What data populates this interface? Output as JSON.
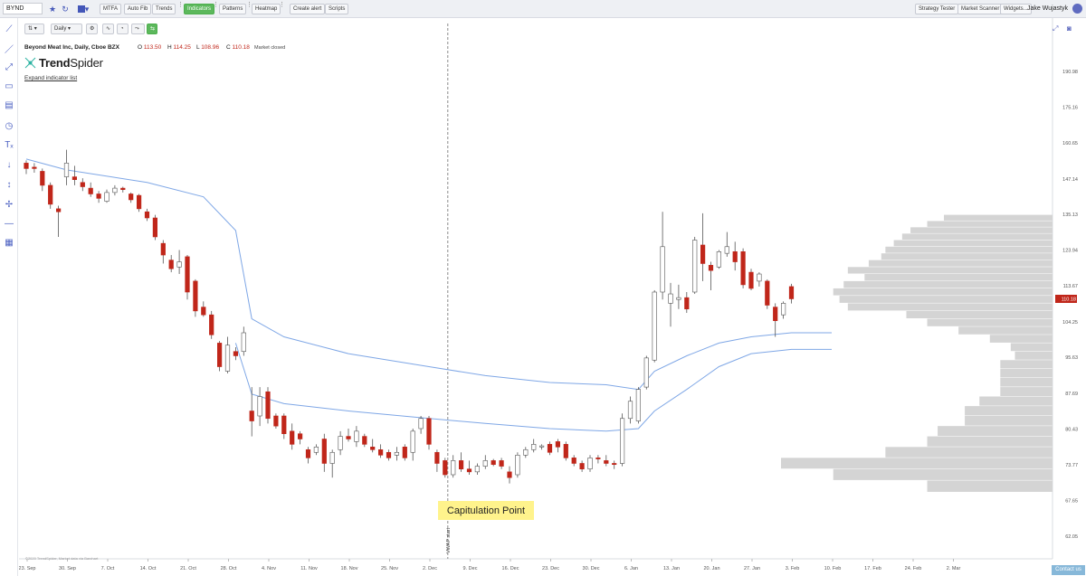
{
  "toolbar": {
    "ticker": "BYND",
    "mtfa": "MTFA",
    "autofib": "Auto Fib",
    "trends": "Trends",
    "indicators": "Indicators",
    "patterns": "Patterns",
    "heatmap": "Heatmap",
    "create_alert": "Create alert",
    "scripts": "Scripts",
    "strategy_tester": "Strategy Tester",
    "market_scanner": "Market Scanner",
    "widgets": "Widgets...",
    "user": "Jake Wujastyk"
  },
  "chart_controls": {
    "timeframe": "Daily"
  },
  "legend": {
    "title": "Beyond Meat Inc, Daily, Cboe BZX",
    "open_label": "O",
    "open": "113.50",
    "high_label": "H",
    "high": "114.25",
    "low_label": "L",
    "low": "108.96",
    "close_label": "C",
    "close": "110.18",
    "market_status": "Market closed"
  },
  "brand": {
    "name_bold": "Trend",
    "name_light": "Spider"
  },
  "expand_link": "Expand indicator list",
  "callout": "Capitulation Point",
  "vwap_label": "VWAP start",
  "contact": "Contact us",
  "watermark": "©2020 TrendSpider, Market data via Barchart",
  "colors": {
    "down": "#c0261a",
    "up": "#ffffff",
    "accent": "#5cb85c",
    "vwap": "#7fa7e6",
    "profile": "#d4d4d4"
  },
  "icons": [
    "star-icon",
    "refresh-icon",
    "color-swatch-icon",
    "line-tool-icon",
    "ray-tool-icon",
    "fib-tool-icon",
    "rectangle-icon",
    "channel-icon",
    "clock-icon",
    "text-icon",
    "arrow-down-icon",
    "arrow-up-icon",
    "crosshair-icon",
    "horizontal-line-icon",
    "grid-icon",
    "fullscreen-icon",
    "camera-icon",
    "user-icon"
  ],
  "chart_data": {
    "type": "candlestick",
    "title": "Beyond Meat Inc, Daily, Cboe BZX",
    "y_ticks": [
      190.98,
      175.16,
      160.65,
      147.14,
      135.13,
      123.94,
      113.67,
      104.25,
      95.63,
      87.69,
      80.43,
      73.77,
      67.65,
      62.05
    ],
    "x_ticks": [
      "23. Sep",
      "30. Sep",
      "7. Oct",
      "14. Oct",
      "21. Oct",
      "28. Oct",
      "4. Nov",
      "11. Nov",
      "18. Nov",
      "25. Nov",
      "2. Dec",
      "9. Dec",
      "16. Dec",
      "23. Dec",
      "30. Dec",
      "6. Jan",
      "13. Jan",
      "20. Jan",
      "27. Jan",
      "3. Feb",
      "10. Feb",
      "17. Feb",
      "24. Feb",
      "2. Mar"
    ],
    "last_price_label": "110.18",
    "candles": [
      {
        "d": "2019-09-23",
        "o": 153.0,
        "h": 154.0,
        "l": 149.0,
        "c": 151.0
      },
      {
        "d": "2019-09-24",
        "o": 151.5,
        "h": 153.0,
        "l": 149.5,
        "c": 151.0
      },
      {
        "d": "2019-09-25",
        "o": 150.0,
        "h": 151.0,
        "l": 143.0,
        "c": 145.0
      },
      {
        "d": "2019-09-26",
        "o": 145.0,
        "h": 146.0,
        "l": 137.0,
        "c": 138.5
      },
      {
        "d": "2019-09-27",
        "o": 137.0,
        "h": 138.0,
        "l": 128.0,
        "c": 136.0
      },
      {
        "d": "2019-09-30",
        "o": 148.0,
        "h": 158.0,
        "l": 145.0,
        "c": 153.0
      },
      {
        "d": "2019-10-01",
        "o": 148.0,
        "h": 152.0,
        "l": 145.0,
        "c": 147.0
      },
      {
        "d": "2019-10-02",
        "o": 146.0,
        "h": 147.5,
        "l": 143.0,
        "c": 144.5
      },
      {
        "d": "2019-10-03",
        "o": 144.0,
        "h": 146.0,
        "l": 141.0,
        "c": 142.0
      },
      {
        "d": "2019-10-04",
        "o": 142.0,
        "h": 143.0,
        "l": 139.0,
        "c": 140.5
      },
      {
        "d": "2019-10-07",
        "o": 139.5,
        "h": 143.5,
        "l": 139.0,
        "c": 142.5
      },
      {
        "d": "2019-10-08",
        "o": 142.5,
        "h": 145.0,
        "l": 141.5,
        "c": 144.0
      },
      {
        "d": "2019-10-09",
        "o": 144.0,
        "h": 144.5,
        "l": 142.5,
        "c": 143.5
      },
      {
        "d": "2019-10-10",
        "o": 142.0,
        "h": 142.5,
        "l": 139.0,
        "c": 140.0
      },
      {
        "d": "2019-10-11",
        "o": 141.5,
        "h": 142.0,
        "l": 136.0,
        "c": 137.0
      },
      {
        "d": "2019-10-14",
        "o": 136.0,
        "h": 137.0,
        "l": 133.0,
        "c": 134.0
      },
      {
        "d": "2019-10-15",
        "o": 134.0,
        "h": 135.0,
        "l": 127.0,
        "c": 128.0
      },
      {
        "d": "2019-10-16",
        "o": 126.0,
        "h": 127.0,
        "l": 120.0,
        "c": 122.5
      },
      {
        "d": "2019-10-17",
        "o": 121.0,
        "h": 122.5,
        "l": 117.5,
        "c": 118.5
      },
      {
        "d": "2019-10-18",
        "o": 119.0,
        "h": 124.0,
        "l": 117.0,
        "c": 120.5
      },
      {
        "d": "2019-10-21",
        "o": 122.0,
        "h": 122.5,
        "l": 110.0,
        "c": 112.0
      },
      {
        "d": "2019-10-22",
        "o": 115.0,
        "h": 115.5,
        "l": 105.5,
        "c": 107.0
      },
      {
        "d": "2019-10-23",
        "o": 108.0,
        "h": 109.5,
        "l": 105.5,
        "c": 106.0
      },
      {
        "d": "2019-10-24",
        "o": 106.0,
        "h": 107.0,
        "l": 100.0,
        "c": 101.0
      },
      {
        "d": "2019-10-25",
        "o": 99.0,
        "h": 99.5,
        "l": 92.5,
        "c": 93.5
      },
      {
        "d": "2019-10-28",
        "o": 92.5,
        "h": 100.5,
        "l": 92.0,
        "c": 98.5
      },
      {
        "d": "2019-10-29",
        "o": 97.0,
        "h": 98.0,
        "l": 95.0,
        "c": 96.0
      },
      {
        "d": "2019-10-30",
        "o": 97.0,
        "h": 103.0,
        "l": 96.0,
        "c": 101.5
      },
      {
        "d": "2019-10-31",
        "o": 84.0,
        "h": 89.0,
        "l": 79.0,
        "c": 82.0
      },
      {
        "d": "2019-11-01",
        "o": 83.0,
        "h": 89.0,
        "l": 81.0,
        "c": 87.0
      },
      {
        "d": "2019-11-04",
        "o": 88.0,
        "h": 89.0,
        "l": 81.5,
        "c": 82.5
      },
      {
        "d": "2019-11-05",
        "o": 83.0,
        "h": 83.5,
        "l": 80.5,
        "c": 81.0
      },
      {
        "d": "2019-11-06",
        "o": 83.0,
        "h": 83.5,
        "l": 78.5,
        "c": 79.5
      },
      {
        "d": "2019-11-07",
        "o": 80.0,
        "h": 81.5,
        "l": 76.5,
        "c": 77.5
      },
      {
        "d": "2019-11-08",
        "o": 79.5,
        "h": 80.0,
        "l": 77.5,
        "c": 78.5
      },
      {
        "d": "2019-11-11",
        "o": 76.5,
        "h": 77.0,
        "l": 74.0,
        "c": 75.0
      },
      {
        "d": "2019-11-12",
        "o": 76.0,
        "h": 77.5,
        "l": 75.5,
        "c": 77.0
      },
      {
        "d": "2019-11-13",
        "o": 78.5,
        "h": 79.5,
        "l": 72.5,
        "c": 74.0
      },
      {
        "d": "2019-11-14",
        "o": 74.0,
        "h": 76.5,
        "l": 71.5,
        "c": 76.0
      },
      {
        "d": "2019-11-15",
        "o": 76.5,
        "h": 80.0,
        "l": 75.5,
        "c": 79.0
      },
      {
        "d": "2019-11-18",
        "o": 79.0,
        "h": 80.5,
        "l": 78.0,
        "c": 78.5
      },
      {
        "d": "2019-11-19",
        "o": 78.0,
        "h": 81.0,
        "l": 77.0,
        "c": 80.0
      },
      {
        "d": "2019-11-20",
        "o": 79.0,
        "h": 79.5,
        "l": 77.0,
        "c": 77.5
      },
      {
        "d": "2019-11-21",
        "o": 77.0,
        "h": 78.5,
        "l": 76.0,
        "c": 76.5
      },
      {
        "d": "2019-11-22",
        "o": 76.5,
        "h": 77.5,
        "l": 75.0,
        "c": 75.5
      },
      {
        "d": "2019-11-25",
        "o": 76.0,
        "h": 76.5,
        "l": 74.5,
        "c": 75.0
      },
      {
        "d": "2019-11-26",
        "o": 75.5,
        "h": 77.0,
        "l": 74.5,
        "c": 76.0
      },
      {
        "d": "2019-11-27",
        "o": 77.0,
        "h": 77.5,
        "l": 74.5,
        "c": 75.0
      },
      {
        "d": "2019-11-29",
        "o": 76.0,
        "h": 80.5,
        "l": 74.5,
        "c": 80.0
      },
      {
        "d": "2019-12-02",
        "o": 80.5,
        "h": 83.0,
        "l": 79.5,
        "c": 82.5
      },
      {
        "d": "2019-12-03",
        "o": 82.5,
        "h": 83.0,
        "l": 76.5,
        "c": 77.5
      },
      {
        "d": "2019-12-04",
        "o": 76.0,
        "h": 76.5,
        "l": 72.5,
        "c": 74.0
      },
      {
        "d": "2019-12-05",
        "o": 74.5,
        "h": 75.0,
        "l": 71.5,
        "c": 72.0
      },
      {
        "d": "2019-12-09",
        "o": 72.0,
        "h": 75.5,
        "l": 71.5,
        "c": 74.5
      },
      {
        "d": "2019-12-10",
        "o": 74.5,
        "h": 76.0,
        "l": 72.5,
        "c": 73.0
      },
      {
        "d": "2019-12-11",
        "o": 73.0,
        "h": 74.5,
        "l": 72.0,
        "c": 72.5
      },
      {
        "d": "2019-12-12",
        "o": 72.5,
        "h": 74.0,
        "l": 72.0,
        "c": 73.5
      },
      {
        "d": "2019-12-13",
        "o": 73.5,
        "h": 75.5,
        "l": 73.0,
        "c": 74.5
      },
      {
        "d": "2019-12-16",
        "o": 74.5,
        "h": 74.8,
        "l": 73.5,
        "c": 73.8
      },
      {
        "d": "2019-12-17",
        "o": 74.5,
        "h": 75.0,
        "l": 73.0,
        "c": 73.5
      },
      {
        "d": "2019-12-18",
        "o": 72.5,
        "h": 73.5,
        "l": 70.5,
        "c": 71.5
      },
      {
        "d": "2019-12-19",
        "o": 72.0,
        "h": 76.0,
        "l": 71.5,
        "c": 75.5
      },
      {
        "d": "2019-12-20",
        "o": 75.5,
        "h": 77.0,
        "l": 75.0,
        "c": 76.5
      },
      {
        "d": "2019-12-23",
        "o": 76.5,
        "h": 78.5,
        "l": 76.0,
        "c": 77.5
      },
      {
        "d": "2019-12-24",
        "o": 77.0,
        "h": 77.5,
        "l": 76.5,
        "c": 77.2
      },
      {
        "d": "2019-12-26",
        "o": 77.5,
        "h": 78.0,
        "l": 75.5,
        "c": 76.0
      },
      {
        "d": "2019-12-27",
        "o": 78.0,
        "h": 78.5,
        "l": 76.0,
        "c": 77.0
      },
      {
        "d": "2019-12-30",
        "o": 77.5,
        "h": 78.0,
        "l": 74.5,
        "c": 75.0
      },
      {
        "d": "2019-12-31",
        "o": 75.0,
        "h": 75.5,
        "l": 73.5,
        "c": 74.0
      },
      {
        "d": "2020-01-02",
        "o": 74.0,
        "h": 74.5,
        "l": 72.5,
        "c": 73.0
      },
      {
        "d": "2020-01-03",
        "o": 73.0,
        "h": 75.5,
        "l": 72.5,
        "c": 75.0
      },
      {
        "d": "2020-01-06",
        "o": 75.0,
        "h": 75.5,
        "l": 74.0,
        "c": 74.8
      },
      {
        "d": "2020-01-07",
        "o": 74.5,
        "h": 75.5,
        "l": 73.5,
        "c": 74.0
      },
      {
        "d": "2020-01-08",
        "o": 74.0,
        "h": 74.5,
        "l": 73.0,
        "c": 73.8
      },
      {
        "d": "2020-01-09",
        "o": 74.0,
        "h": 83.5,
        "l": 73.5,
        "c": 82.5
      },
      {
        "d": "2020-01-10",
        "o": 82.5,
        "h": 87.0,
        "l": 81.5,
        "c": 86.0
      },
      {
        "d": "2020-01-13",
        "o": 82.0,
        "h": 89.0,
        "l": 81.5,
        "c": 88.5
      },
      {
        "d": "2020-01-14",
        "o": 89.0,
        "h": 96.0,
        "l": 88.5,
        "c": 95.5
      },
      {
        "d": "2020-01-15",
        "o": 95.0,
        "h": 112.5,
        "l": 94.5,
        "c": 112.0
      },
      {
        "d": "2020-01-16",
        "o": 112.0,
        "h": 136.0,
        "l": 110.0,
        "c": 125.0
      },
      {
        "d": "2020-01-17",
        "o": 109.0,
        "h": 114.5,
        "l": 103.0,
        "c": 111.5
      },
      {
        "d": "2020-01-21",
        "o": 110.0,
        "h": 114.0,
        "l": 107.5,
        "c": 110.5
      },
      {
        "d": "2020-01-22",
        "o": 110.5,
        "h": 112.0,
        "l": 106.5,
        "c": 107.5
      },
      {
        "d": "2020-01-23",
        "o": 112.0,
        "h": 128.0,
        "l": 111.5,
        "c": 127.0
      },
      {
        "d": "2020-01-24",
        "o": 125.5,
        "h": 135.5,
        "l": 115.0,
        "c": 120.0
      },
      {
        "d": "2020-01-27",
        "o": 119.5,
        "h": 120.5,
        "l": 112.5,
        "c": 118.0
      },
      {
        "d": "2020-01-28",
        "o": 119.0,
        "h": 124.0,
        "l": 118.5,
        "c": 123.5
      },
      {
        "d": "2020-01-29",
        "o": 123.0,
        "h": 129.5,
        "l": 122.0,
        "c": 125.0
      },
      {
        "d": "2020-01-30",
        "o": 123.5,
        "h": 126.5,
        "l": 118.0,
        "c": 120.5
      },
      {
        "d": "2020-01-31",
        "o": 123.5,
        "h": 124.5,
        "l": 113.0,
        "c": 114.0
      },
      {
        "d": "2020-02-03",
        "o": 117.5,
        "h": 118.5,
        "l": 112.5,
        "c": 113.0
      },
      {
        "d": "2020-02-04",
        "o": 115.0,
        "h": 117.5,
        "l": 113.5,
        "c": 117.0
      },
      {
        "d": "2020-02-05",
        "o": 115.0,
        "h": 115.5,
        "l": 107.5,
        "c": 108.5
      },
      {
        "d": "2020-02-06",
        "o": 108.0,
        "h": 109.0,
        "l": 100.5,
        "c": 104.5
      },
      {
        "d": "2020-02-07",
        "o": 106.0,
        "h": 109.5,
        "l": 105.0,
        "c": 109.0
      },
      {
        "d": "2020-02-10",
        "o": 113.5,
        "h": 114.25,
        "l": 108.96,
        "c": 110.18
      }
    ],
    "vwap_upper": [
      [
        0,
        154.5
      ],
      [
        5,
        150.5
      ],
      [
        15,
        146.0
      ],
      [
        22,
        141.0
      ],
      [
        26,
        130.0
      ],
      [
        28,
        105.0
      ],
      [
        32,
        100.5
      ],
      [
        40,
        96.5
      ],
      [
        50,
        93.5
      ],
      [
        57,
        91.5
      ],
      [
        65,
        90.0
      ],
      [
        72,
        89.5
      ],
      [
        76,
        88.5
      ],
      [
        78,
        92.5
      ],
      [
        82,
        96.0
      ],
      [
        86,
        99.0
      ],
      [
        90,
        100.5
      ],
      [
        95,
        101.5
      ],
      [
        100,
        101.5
      ]
    ],
    "vwap_lower": [
      [
        26,
        99.0
      ],
      [
        28,
        87.5
      ],
      [
        32,
        85.5
      ],
      [
        40,
        84.0
      ],
      [
        50,
        82.5
      ],
      [
        57,
        81.5
      ],
      [
        65,
        80.5
      ],
      [
        72,
        80.0
      ],
      [
        76,
        80.5
      ],
      [
        78,
        84.0
      ],
      [
        82,
        88.5
      ],
      [
        86,
        93.5
      ],
      [
        90,
        96.5
      ],
      [
        95,
        97.5
      ],
      [
        100,
        97.5
      ]
    ],
    "volume_profile": [
      {
        "price": 134.0,
        "w": 0.52
      },
      {
        "price": 132.0,
        "w": 0.6
      },
      {
        "price": 130.0,
        "w": 0.68
      },
      {
        "price": 128.0,
        "w": 0.72
      },
      {
        "price": 126.0,
        "w": 0.76
      },
      {
        "price": 124.0,
        "w": 0.8
      },
      {
        "price": 122.0,
        "w": 0.82
      },
      {
        "price": 120.0,
        "w": 0.88
      },
      {
        "price": 118.0,
        "w": 0.98
      },
      {
        "price": 116.0,
        "w": 0.9
      },
      {
        "price": 114.0,
        "w": 1.0
      },
      {
        "price": 112.0,
        "w": 1.05
      },
      {
        "price": 110.0,
        "w": 1.02
      },
      {
        "price": 108.0,
        "w": 0.98
      },
      {
        "price": 106.0,
        "w": 0.7
      },
      {
        "price": 104.0,
        "w": 0.6
      },
      {
        "price": 102.0,
        "w": 0.45
      },
      {
        "price": 100.0,
        "w": 0.3
      },
      {
        "price": 98.0,
        "w": 0.2
      },
      {
        "price": 96.0,
        "w": 0.18
      },
      {
        "price": 94.0,
        "w": 0.25
      },
      {
        "price": 92.0,
        "w": 0.25
      },
      {
        "price": 90.0,
        "w": 0.25
      },
      {
        "price": 88.0,
        "w": 0.25
      },
      {
        "price": 86.0,
        "w": 0.35
      },
      {
        "price": 84.0,
        "w": 0.42
      },
      {
        "price": 82.0,
        "w": 0.42
      },
      {
        "price": 80.0,
        "w": 0.55
      },
      {
        "price": 78.0,
        "w": 0.6
      },
      {
        "price": 76.0,
        "w": 0.8
      },
      {
        "price": 74.0,
        "w": 1.3
      },
      {
        "price": 72.0,
        "w": 1.05
      },
      {
        "price": 70.0,
        "w": 0.6
      }
    ]
  }
}
